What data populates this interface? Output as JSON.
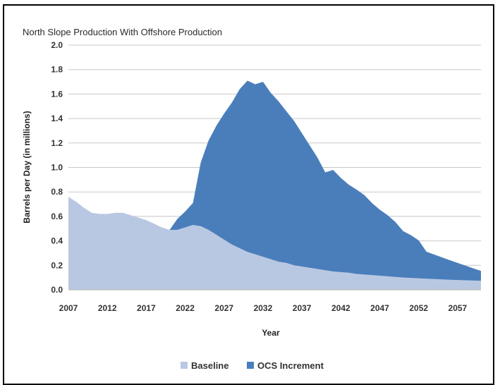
{
  "chart_data": {
    "type": "area",
    "stacked": true,
    "title": "North Slope Production With Offshore Production",
    "xlabel": "Year",
    "ylabel": "Barrels per Day (in millions)",
    "xlim": [
      2007,
      2060
    ],
    "ylim": [
      0,
      2.0
    ],
    "y_ticks": [
      "0.0",
      "0.2",
      "0.4",
      "0.6",
      "0.8",
      "1.0",
      "1.2",
      "1.4",
      "1.6",
      "1.8",
      "2.0"
    ],
    "y_tick_values": [
      0,
      0.2,
      0.4,
      0.6,
      0.8,
      1.0,
      1.2,
      1.4,
      1.6,
      1.8,
      2.0
    ],
    "x_ticks": [
      "2007",
      "2012",
      "2017",
      "2022",
      "2027",
      "2032",
      "2037",
      "2042",
      "2047",
      "2052",
      "2057"
    ],
    "x_tick_values": [
      2007,
      2012,
      2017,
      2022,
      2027,
      2032,
      2037,
      2042,
      2047,
      2052,
      2057
    ],
    "grid": "horizontal",
    "legend": "bottom",
    "x": [
      2007,
      2008,
      2009,
      2010,
      2011,
      2012,
      2013,
      2014,
      2015,
      2016,
      2017,
      2018,
      2019,
      2020,
      2021,
      2022,
      2023,
      2024,
      2025,
      2026,
      2027,
      2028,
      2029,
      2030,
      2031,
      2032,
      2033,
      2034,
      2035,
      2036,
      2037,
      2038,
      2039,
      2040,
      2041,
      2042,
      2043,
      2044,
      2045,
      2046,
      2047,
      2048,
      2049,
      2050,
      2051,
      2052,
      2053,
      2054,
      2055,
      2056,
      2057,
      2058,
      2059,
      2060
    ],
    "series": [
      {
        "name": "Baseline",
        "color": "#b9c8e2",
        "values": [
          0.76,
          0.72,
          0.67,
          0.63,
          0.62,
          0.62,
          0.63,
          0.63,
          0.61,
          0.59,
          0.57,
          0.54,
          0.51,
          0.49,
          0.49,
          0.51,
          0.53,
          0.52,
          0.49,
          0.45,
          0.41,
          0.37,
          0.34,
          0.31,
          0.29,
          0.27,
          0.25,
          0.23,
          0.22,
          0.2,
          0.19,
          0.18,
          0.17,
          0.16,
          0.15,
          0.145,
          0.14,
          0.13,
          0.125,
          0.12,
          0.115,
          0.11,
          0.105,
          0.1,
          0.097,
          0.094,
          0.091,
          0.088,
          0.085,
          0.082,
          0.08,
          0.078,
          0.076,
          0.074
        ]
      },
      {
        "name": "OCS Increment",
        "color": "#4a7ebb",
        "values": [
          0,
          0,
          0,
          0,
          0,
          0,
          0,
          0,
          0,
          0,
          0,
          0,
          0,
          0,
          0.09,
          0.13,
          0.18,
          0.52,
          0.73,
          0.89,
          1.03,
          1.16,
          1.3,
          1.4,
          1.39,
          1.43,
          1.36,
          1.31,
          1.24,
          1.18,
          1.09,
          1.0,
          0.91,
          0.8,
          0.83,
          0.77,
          0.72,
          0.69,
          0.65,
          0.59,
          0.54,
          0.5,
          0.45,
          0.38,
          0.35,
          0.31,
          0.22,
          0.2,
          0.18,
          0.16,
          0.14,
          0.12,
          0.1,
          0.08
        ]
      }
    ]
  }
}
